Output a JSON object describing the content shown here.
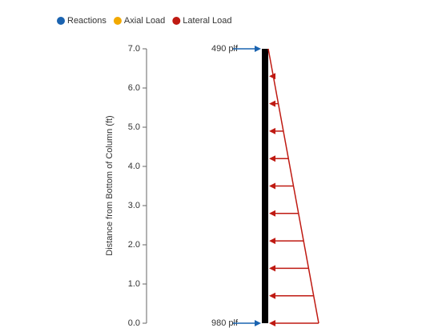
{
  "chart_data": {
    "type": "load-diagram",
    "legend": [
      {
        "name": "Reactions",
        "color": "#1a63b0"
      },
      {
        "name": "Axial Load",
        "color": "#f2a900"
      },
      {
        "name": "Lateral Load",
        "color": "#bf1a12"
      }
    ],
    "y_label": "Distance from Bottom of Column (ft)",
    "ylim": [
      0,
      7
    ],
    "yticks": [
      {
        "value": 0,
        "label": "0.0"
      },
      {
        "value": 1,
        "label": "1.0"
      },
      {
        "value": 2,
        "label": "2.0"
      },
      {
        "value": 3,
        "label": "3.0"
      },
      {
        "value": 4,
        "label": "4.0"
      },
      {
        "value": 5,
        "label": "5.0"
      },
      {
        "value": 6,
        "label": "6.0"
      },
      {
        "value": 7,
        "label": "7.0"
      }
    ],
    "column_height": 7,
    "reactions": {
      "positions": [
        7,
        0
      ],
      "values": [
        490,
        980
      ],
      "value_labels": [
        "490 plf",
        "980 plf"
      ]
    },
    "lateral_load": {
      "positions": [
        0,
        0.7,
        1.4,
        2.1,
        2.8,
        3.5,
        4.2,
        4.9,
        5.6,
        6.3
      ]
    }
  }
}
